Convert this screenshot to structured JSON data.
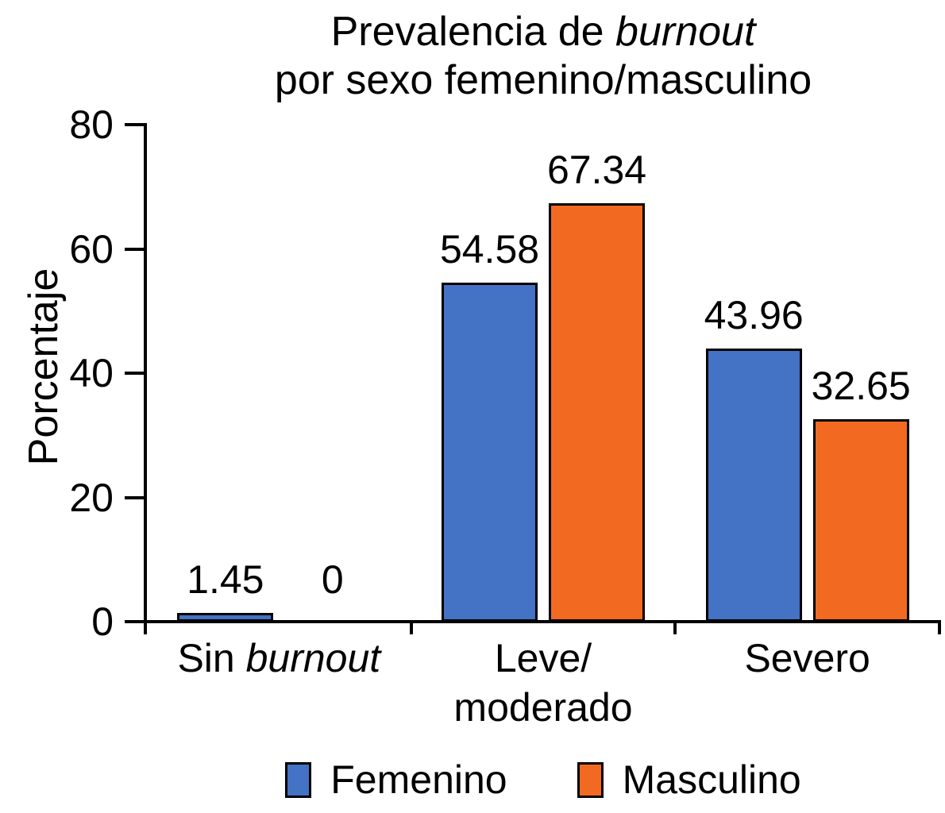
{
  "title": {
    "full": "Prevalencia de burnout por sexo femenino/masculino",
    "lines": [
      [
        {
          "text": "Prevalencia de ",
          "italic": false
        },
        {
          "text": "burnout",
          "italic": true
        }
      ],
      [
        {
          "text": "por sexo femenino/masculino",
          "italic": false
        }
      ]
    ]
  },
  "axes": {
    "y_label": "Porcentaje",
    "y_tick_labels": [
      "0",
      "20",
      "40",
      "60",
      "80"
    ]
  },
  "legend": {
    "items": [
      {
        "label": "Femenino",
        "color": "#4472C4"
      },
      {
        "label": "Masculino",
        "color": "#F26A22"
      }
    ]
  },
  "colors": {
    "femenino": "#4472C4",
    "masculino": "#F26A22",
    "axis": "#000000",
    "text": "#000000",
    "background": "#FFFFFF"
  },
  "chart_data": {
    "type": "bar",
    "title": "Prevalencia de burnout por sexo femenino/masculino",
    "xlabel": "",
    "ylabel": "Porcentaje",
    "ylim": [
      0,
      80
    ],
    "yticks": [
      0,
      20,
      40,
      60,
      80
    ],
    "grid": false,
    "legend_position": "bottom",
    "categories": [
      "Sin burnout",
      "Leve/moderado",
      "Severo"
    ],
    "category_lines": [
      [
        [
          {
            "text": "Sin ",
            "italic": false
          },
          {
            "text": "burnout",
            "italic": true
          }
        ]
      ],
      [
        [
          {
            "text": "Leve/",
            "italic": false
          }
        ],
        [
          {
            "text": "moderado",
            "italic": false
          }
        ]
      ],
      [
        [
          {
            "text": "Severo",
            "italic": false
          }
        ]
      ]
    ],
    "series": [
      {
        "name": "Femenino",
        "color": "#4472C4",
        "values": [
          1.45,
          54.58,
          43.96
        ],
        "labels": [
          "1.45",
          "54.58",
          "43.96"
        ]
      },
      {
        "name": "Masculino",
        "color": "#F26A22",
        "values": [
          0,
          67.34,
          32.65
        ],
        "labels": [
          "0",
          "67.34",
          "32.65"
        ]
      }
    ]
  }
}
